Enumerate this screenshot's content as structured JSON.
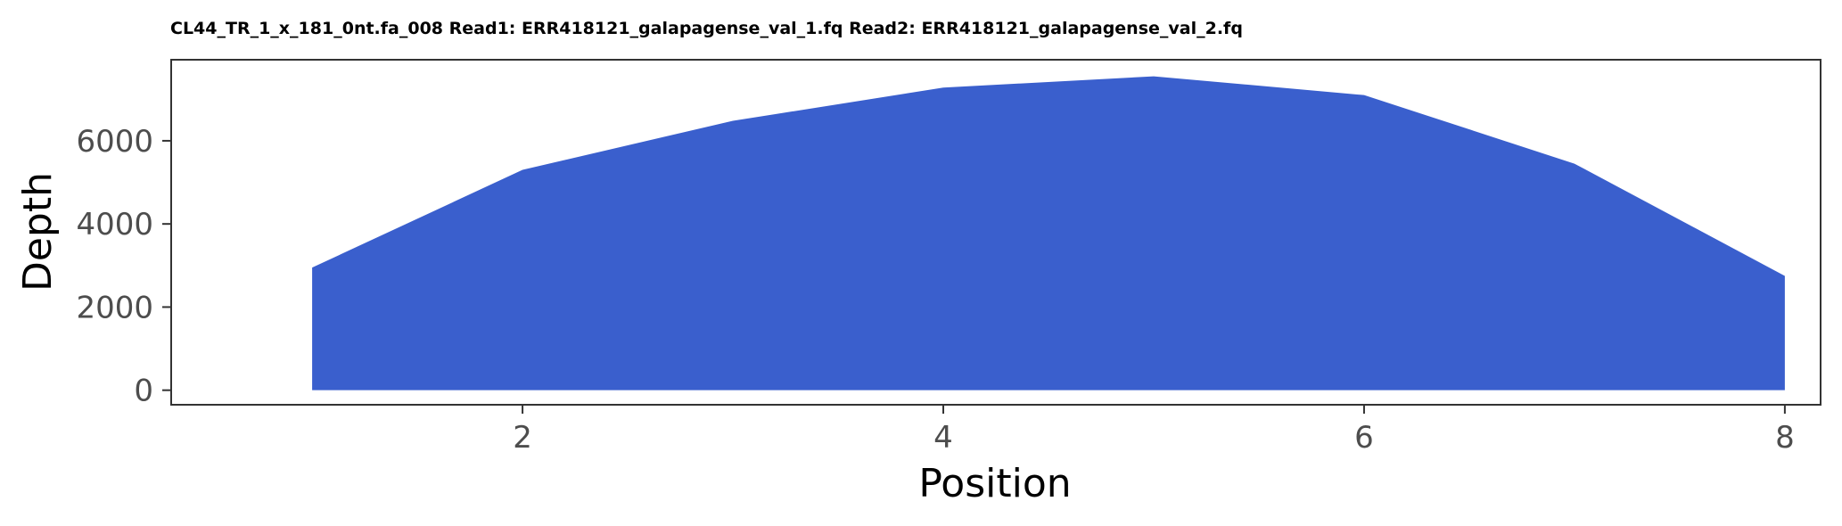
{
  "chart_data": {
    "type": "area",
    "title": "CL44_TR_1_x_181_0nt.fa_008 Read1: ERR418121_galapagense_val_1.fq Read2: ERR418121_galapagense_val_2.fq",
    "xlabel": "Position",
    "ylabel": "Depth",
    "x": [
      1,
      2,
      3,
      4,
      5,
      6,
      7,
      8
    ],
    "series": [
      {
        "values": [
          2950,
          5300,
          6480,
          7280,
          7550,
          7100,
          5450,
          2750
        ]
      }
    ],
    "xlim": [
      0.33,
      8.17
    ],
    "ylim": [
      -350,
      7950
    ],
    "xticks": [
      2,
      4,
      6,
      8
    ],
    "yticks": [
      0,
      2000,
      4000,
      6000
    ],
    "grid": false,
    "legend": "none",
    "fill_color": "#3a5fcd",
    "panel_border_color": "#333333"
  }
}
